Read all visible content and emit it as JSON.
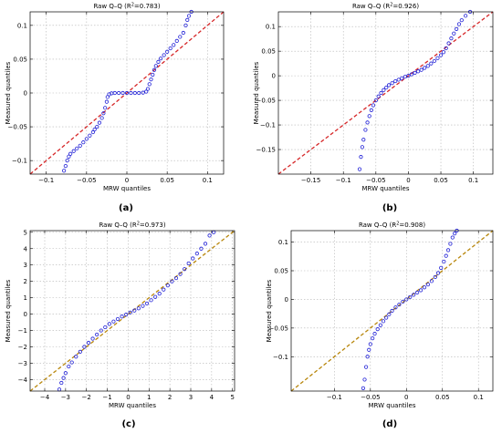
{
  "figure": {
    "caption_labels": [
      "(a)",
      "(b)",
      "(c)",
      "(d)"
    ]
  },
  "chart_data": [
    {
      "type": "scatter",
      "title": "Raw Q–Q (R",
      "title_sup": "2",
      "title_rest": "=0.783)",
      "xlabel": "MRW quantiles",
      "ylabel": "Measured quantiles",
      "caption": "(a)",
      "xlim": [
        -0.12,
        0.12
      ],
      "ylim": [
        -0.12,
        0.12
      ],
      "xticks": [
        -0.1,
        -0.05,
        0,
        0.05,
        0.1
      ],
      "xtick_labels": [
        "−0.1",
        "−0.05",
        "0",
        "0.05",
        "0.1"
      ],
      "yticks": [
        -0.1,
        -0.05,
        0,
        0.05,
        0.1
      ],
      "ytick_labels": [
        "−0.1",
        "−0.05",
        "0",
        "0.05",
        "0.1"
      ],
      "grid": true,
      "reference_line": {
        "style": "dashed",
        "color": "#d62728",
        "from": [
          -0.12,
          -0.12
        ],
        "to": [
          0.12,
          0.12
        ]
      },
      "series": [
        {
          "marker": "circle",
          "color": "#1f1fd6",
          "points": [
            [
              -0.078,
              -0.115
            ],
            [
              -0.076,
              -0.108
            ],
            [
              -0.074,
              -0.1
            ],
            [
              -0.072,
              -0.094
            ],
            [
              -0.07,
              -0.09
            ],
            [
              -0.066,
              -0.086
            ],
            [
              -0.062,
              -0.082
            ],
            [
              -0.058,
              -0.078
            ],
            [
              -0.054,
              -0.073
            ],
            [
              -0.05,
              -0.068
            ],
            [
              -0.046,
              -0.063
            ],
            [
              -0.042,
              -0.058
            ],
            [
              -0.04,
              -0.054
            ],
            [
              -0.037,
              -0.05
            ],
            [
              -0.034,
              -0.044
            ],
            [
              -0.031,
              -0.037
            ],
            [
              -0.029,
              -0.03
            ],
            [
              -0.027,
              -0.022
            ],
            [
              -0.025,
              -0.013
            ],
            [
              -0.024,
              -0.006
            ],
            [
              -0.022,
              -0.002
            ],
            [
              -0.019,
              -0.0005
            ],
            [
              -0.015,
              0
            ],
            [
              -0.01,
              0
            ],
            [
              -0.005,
              0
            ],
            [
              0,
              0
            ],
            [
              0.005,
              0
            ],
            [
              0.01,
              0
            ],
            [
              0.015,
              0
            ],
            [
              0.02,
              0.0005
            ],
            [
              0.024,
              0.002
            ],
            [
              0.026,
              0.006
            ],
            [
              0.028,
              0.013
            ],
            [
              0.03,
              0.02
            ],
            [
              0.032,
              0.027
            ],
            [
              0.034,
              0.034
            ],
            [
              0.036,
              0.04
            ],
            [
              0.039,
              0.046
            ],
            [
              0.042,
              0.051
            ],
            [
              0.046,
              0.056
            ],
            [
              0.05,
              0.061
            ],
            [
              0.054,
              0.066
            ],
            [
              0.058,
              0.071
            ],
            [
              0.062,
              0.077
            ],
            [
              0.066,
              0.083
            ],
            [
              0.07,
              0.089
            ],
            [
              0.073,
              0.1
            ],
            [
              0.075,
              0.108
            ],
            [
              0.077,
              0.114
            ],
            [
              0.08,
              0.12
            ]
          ]
        }
      ]
    },
    {
      "type": "scatter",
      "title": "Raw Q–Q (R",
      "title_sup": "2",
      "title_rest": "=0.926)",
      "xlabel": "MRW quantiles",
      "ylabel": "Measured quantiles",
      "caption": "(b)",
      "xlim": [
        -0.2,
        0.13
      ],
      "ylim": [
        -0.2,
        0.13
      ],
      "xticks": [
        -0.15,
        -0.1,
        -0.05,
        0,
        0.05,
        0.1
      ],
      "xtick_labels": [
        "−0.15",
        "−0.1",
        "−0.05",
        "0",
        "0.05",
        "0.1"
      ],
      "yticks": [
        -0.15,
        -0.1,
        -0.05,
        0,
        0.05,
        0.1
      ],
      "ytick_labels": [
        "−0.15",
        "−0.1",
        "−0.05",
        "0",
        "0.05",
        "0.1"
      ],
      "grid": true,
      "reference_line": {
        "style": "dashed",
        "color": "#d62728",
        "from": [
          -0.2,
          -0.2
        ],
        "to": [
          0.13,
          0.13
        ]
      },
      "series": [
        {
          "marker": "circle",
          "color": "#1f1fd6",
          "points": [
            [
              -0.075,
              -0.19
            ],
            [
              -0.073,
              -0.165
            ],
            [
              -0.071,
              -0.145
            ],
            [
              -0.069,
              -0.13
            ],
            [
              -0.066,
              -0.11
            ],
            [
              -0.063,
              -0.095
            ],
            [
              -0.06,
              -0.082
            ],
            [
              -0.057,
              -0.07
            ],
            [
              -0.054,
              -0.06
            ],
            [
              -0.05,
              -0.05
            ],
            [
              -0.046,
              -0.042
            ],
            [
              -0.042,
              -0.035
            ],
            [
              -0.038,
              -0.029
            ],
            [
              -0.034,
              -0.024
            ],
            [
              -0.03,
              -0.019
            ],
            [
              -0.025,
              -0.015
            ],
            [
              -0.02,
              -0.011
            ],
            [
              -0.015,
              -0.008
            ],
            [
              -0.01,
              -0.005
            ],
            [
              -0.005,
              -0.002
            ],
            [
              0,
              0
            ],
            [
              0.005,
              0.003
            ],
            [
              0.01,
              0.006
            ],
            [
              0.015,
              0.009
            ],
            [
              0.02,
              0.012
            ],
            [
              0.025,
              0.016
            ],
            [
              0.03,
              0.02
            ],
            [
              0.035,
              0.025
            ],
            [
              0.04,
              0.03
            ],
            [
              0.045,
              0.036
            ],
            [
              0.05,
              0.042
            ],
            [
              0.054,
              0.048
            ],
            [
              0.058,
              0.056
            ],
            [
              0.062,
              0.066
            ],
            [
              0.066,
              0.076
            ],
            [
              0.07,
              0.086
            ],
            [
              0.074,
              0.095
            ],
            [
              0.078,
              0.105
            ],
            [
              0.082,
              0.113
            ],
            [
              0.088,
              0.122
            ],
            [
              0.095,
              0.13
            ]
          ]
        }
      ]
    },
    {
      "type": "scatter",
      "title": "Raw Q–Q (R",
      "title_sup": "2",
      "title_rest": "=0.973)",
      "xlabel": "MRW quantiles",
      "ylabel": "Measured quantiles",
      "caption": "(c)",
      "xlim": [
        -4.7,
        5.1
      ],
      "ylim": [
        -4.7,
        5.1
      ],
      "xticks": [
        -4,
        -3,
        -2,
        -1,
        0,
        1,
        2,
        3,
        4,
        5
      ],
      "xtick_labels": [
        "−4",
        "−3",
        "−2",
        "−1",
        "0",
        "1",
        "2",
        "3",
        "4",
        "5"
      ],
      "yticks": [
        -4,
        -3,
        -2,
        -1,
        0,
        1,
        2,
        3,
        4,
        5
      ],
      "ytick_labels": [
        "−4",
        "−3",
        "−2",
        "−1",
        "0",
        "1",
        "2",
        "3",
        "4",
        "5"
      ],
      "grid": true,
      "reference_line": {
        "style": "dashed",
        "color": "#b8860b",
        "from": [
          -4.7,
          -4.7
        ],
        "to": [
          5.1,
          5.1
        ]
      },
      "series": [
        {
          "marker": "circle",
          "color": "#1f1fd6",
          "points": [
            [
              -3.3,
              -4.6
            ],
            [
              -3.2,
              -4.2
            ],
            [
              -3.1,
              -3.9
            ],
            [
              -3.0,
              -3.6
            ],
            [
              -2.85,
              -3.2
            ],
            [
              -2.7,
              -2.95
            ],
            [
              -2.5,
              -2.6
            ],
            [
              -2.3,
              -2.3
            ],
            [
              -2.1,
              -2.0
            ],
            [
              -1.9,
              -1.75
            ],
            [
              -1.7,
              -1.5
            ],
            [
              -1.5,
              -1.25
            ],
            [
              -1.3,
              -1.0
            ],
            [
              -1.1,
              -0.8
            ],
            [
              -0.9,
              -0.6
            ],
            [
              -0.7,
              -0.45
            ],
            [
              -0.5,
              -0.3
            ],
            [
              -0.3,
              -0.15
            ],
            [
              -0.1,
              -0.03
            ],
            [
              0.1,
              0.1
            ],
            [
              0.3,
              0.22
            ],
            [
              0.5,
              0.35
            ],
            [
              0.7,
              0.5
            ],
            [
              0.9,
              0.65
            ],
            [
              1.1,
              0.85
            ],
            [
              1.3,
              1.05
            ],
            [
              1.5,
              1.25
            ],
            [
              1.7,
              1.5
            ],
            [
              1.9,
              1.75
            ],
            [
              2.1,
              2.0
            ],
            [
              2.3,
              2.2
            ],
            [
              2.5,
              2.45
            ],
            [
              2.7,
              2.75
            ],
            [
              2.9,
              3.1
            ],
            [
              3.1,
              3.4
            ],
            [
              3.3,
              3.7
            ],
            [
              3.5,
              4.0
            ],
            [
              3.7,
              4.3
            ],
            [
              3.9,
              4.8
            ],
            [
              4.1,
              5.0
            ]
          ]
        }
      ]
    },
    {
      "type": "scatter",
      "title": "Raw Q–Q (R",
      "title_sup": "2",
      "title_rest": "=0.908)",
      "xlabel": "MRW quantiles",
      "ylabel": "Measured quantiles",
      "caption": "(d)",
      "xlim": [
        -0.16,
        0.12
      ],
      "ylim": [
        -0.16,
        0.12
      ],
      "xticks": [
        -0.1,
        -0.05,
        0,
        0.05,
        0.1
      ],
      "xtick_labels": [
        "−0.1",
        "−0.05",
        "0",
        "0.05",
        "0.1"
      ],
      "yticks": [
        -0.1,
        -0.05,
        0,
        0.05,
        0.1
      ],
      "ytick_labels": [
        "−0.1",
        "−0.05",
        "0",
        "0.05",
        "0.1"
      ],
      "grid": true,
      "reference_line": {
        "style": "dashed",
        "color": "#b8860b",
        "from": [
          -0.16,
          -0.16
        ],
        "to": [
          0.12,
          0.12
        ]
      },
      "series": [
        {
          "marker": "circle",
          "color": "#1f1fd6",
          "points": [
            [
              -0.06,
              -0.155
            ],
            [
              -0.058,
              -0.14
            ],
            [
              -0.056,
              -0.118
            ],
            [
              -0.054,
              -0.1
            ],
            [
              -0.052,
              -0.088
            ],
            [
              -0.05,
              -0.078
            ],
            [
              -0.047,
              -0.068
            ],
            [
              -0.044,
              -0.06
            ],
            [
              -0.04,
              -0.052
            ],
            [
              -0.036,
              -0.045
            ],
            [
              -0.032,
              -0.038
            ],
            [
              -0.028,
              -0.032
            ],
            [
              -0.024,
              -0.026
            ],
            [
              -0.02,
              -0.02
            ],
            [
              -0.015,
              -0.014
            ],
            [
              -0.01,
              -0.009
            ],
            [
              -0.005,
              -0.004
            ],
            [
              0,
              0
            ],
            [
              0.005,
              0.004
            ],
            [
              0.01,
              0.008
            ],
            [
              0.015,
              0.012
            ],
            [
              0.02,
              0.016
            ],
            [
              0.025,
              0.021
            ],
            [
              0.03,
              0.026
            ],
            [
              0.035,
              0.032
            ],
            [
              0.04,
              0.039
            ],
            [
              0.044,
              0.046
            ],
            [
              0.048,
              0.055
            ],
            [
              0.052,
              0.066
            ],
            [
              0.055,
              0.076
            ],
            [
              0.058,
              0.086
            ],
            [
              0.061,
              0.097
            ],
            [
              0.064,
              0.108
            ],
            [
              0.067,
              0.115
            ],
            [
              0.07,
              0.12
            ]
          ]
        }
      ]
    }
  ]
}
